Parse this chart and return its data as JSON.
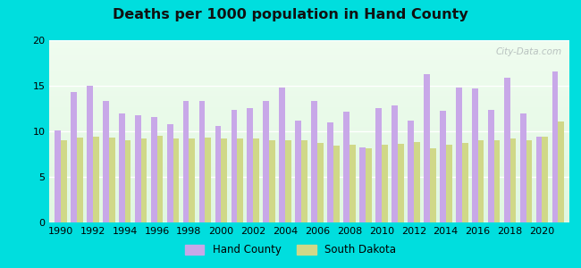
{
  "title": "Deaths per 1000 population in Hand County",
  "background_color": "#00dede",
  "plot_bg": "#f0f8f0",
  "years": [
    1990,
    1991,
    1992,
    1993,
    1994,
    1995,
    1996,
    1997,
    1998,
    1999,
    2000,
    2001,
    2002,
    2003,
    2004,
    2005,
    2006,
    2007,
    2008,
    2009,
    2010,
    2011,
    2012,
    2013,
    2014,
    2015,
    2016,
    2017,
    2018,
    2019,
    2020,
    2021
  ],
  "hand_county": [
    10.1,
    14.3,
    15.0,
    13.3,
    12.0,
    11.8,
    11.6,
    10.8,
    13.3,
    13.3,
    10.6,
    12.4,
    12.5,
    13.3,
    14.8,
    11.2,
    13.3,
    11.0,
    12.2,
    8.2,
    12.5,
    12.8,
    11.2,
    16.3,
    12.3,
    14.8,
    14.7,
    12.4,
    15.9,
    12.0,
    9.4,
    16.6
  ],
  "south_dakota": [
    9.0,
    9.3,
    9.4,
    9.3,
    9.0,
    9.2,
    9.5,
    9.2,
    9.2,
    9.3,
    9.2,
    9.2,
    9.2,
    9.0,
    9.0,
    9.0,
    8.7,
    8.4,
    8.5,
    8.1,
    8.5,
    8.6,
    8.8,
    8.1,
    8.5,
    8.7,
    9.0,
    9.0,
    9.2,
    9.0,
    9.4,
    11.1
  ],
  "hand_color": "#c8a8e8",
  "sd_color": "#d0d888",
  "ylim": [
    0,
    20
  ],
  "yticks": [
    0,
    5,
    10,
    15,
    20
  ],
  "bar_width": 0.38,
  "watermark": "City-Data.com",
  "legend_hand": "Hand County",
  "legend_sd": "South Dakota"
}
